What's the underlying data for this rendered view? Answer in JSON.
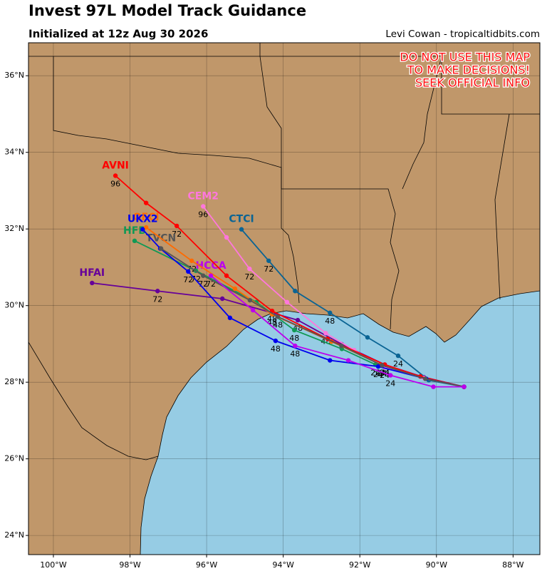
{
  "chart_data": {
    "type": "track",
    "title": "Invest 97L Model Track Guidance",
    "subtitle": "Initialized at 12z Aug 30 2026",
    "credit": "Levi Cowan - tropicaltidbits.com",
    "warning": [
      "DO NOT USE THIS MAP",
      "TO MAKE DECISIONS!",
      "SEEK OFFICIAL INFO"
    ],
    "xlim": [
      -100.65,
      -87.3
    ],
    "ylim": [
      23.5,
      36.86
    ],
    "xticks": [
      {
        "value": -100,
        "label": "100°W"
      },
      {
        "value": -98,
        "label": "98°W"
      },
      {
        "value": -96,
        "label": "96°W"
      },
      {
        "value": -94,
        "label": "94°W"
      },
      {
        "value": -92,
        "label": "92°W"
      },
      {
        "value": -90,
        "label": "90°W"
      },
      {
        "value": -88,
        "label": "88°W"
      }
    ],
    "yticks": [
      {
        "value": 24,
        "label": "24°N"
      },
      {
        "value": 26,
        "label": "26°N"
      },
      {
        "value": 28,
        "label": "28°N"
      },
      {
        "value": 30,
        "label": "30°N"
      },
      {
        "value": 32,
        "label": "32°N"
      },
      {
        "value": 34,
        "label": "34°N"
      },
      {
        "value": 36,
        "label": "36°N"
      }
    ],
    "grid": true,
    "land_color": "#c0976a",
    "water_color": "#96cce4",
    "series": [
      {
        "name": "HFAI",
        "color": "#660099",
        "lon": [
          -89.28,
          -90.33,
          -91.35,
          -92.47,
          -93.62,
          -95.59,
          -97.28,
          -98.99
        ],
        "lat": [
          27.88,
          28.13,
          28.46,
          28.99,
          29.62,
          30.18,
          30.38,
          30.59
        ],
        "hours": [
          null,
          null,
          24,
          null,
          48,
          null,
          72,
          null
        ]
      },
      {
        "name": "HFB",
        "color": "#119955",
        "lon": [
          -89.28,
          -90.33,
          -91.59,
          -92.47,
          -93.71,
          -94.7,
          -96.28,
          -97.88
        ],
        "lat": [
          27.88,
          28.11,
          28.46,
          28.87,
          29.36,
          30.09,
          30.91,
          31.69
        ],
        "hours": [
          null,
          null,
          24,
          null,
          48,
          null,
          72,
          null
        ]
      },
      {
        "name": "CTCI",
        "color": "#0a6494",
        "lon": [
          -89.28,
          -90.2,
          -91.0,
          -91.8,
          -92.78,
          -93.69,
          -94.38,
          -95.09
        ],
        "lat": [
          27.88,
          28.05,
          28.69,
          29.17,
          29.81,
          30.38,
          31.17,
          31.99
        ],
        "hours": [
          null,
          null,
          24,
          null,
          48,
          null,
          72,
          null
        ]
      },
      {
        "name": "CEM2",
        "color": "#ff77dd",
        "lon": [
          -89.28,
          -90.33,
          -91.35,
          -92.15,
          -92.89,
          -93.9,
          -94.88,
          -95.48,
          -96.09
        ],
        "lat": [
          27.88,
          28.11,
          28.39,
          28.84,
          29.28,
          30.09,
          30.96,
          31.78,
          32.59
        ],
        "hours": [
          null,
          null,
          24,
          null,
          48,
          null,
          72,
          null,
          96
        ]
      },
      {
        "name": "OFCI",
        "color": "#ff6a00",
        "lon": [
          -89.28,
          -90.29,
          -91.46,
          -92.74,
          -94.29,
          -95.26,
          -96.39,
          -97.58
        ],
        "lat": [
          27.88,
          28.09,
          28.46,
          29.06,
          29.77,
          30.44,
          31.17,
          32.04
        ],
        "hours": [
          null,
          null,
          24,
          null,
          48,
          null,
          72,
          null
        ]
      },
      {
        "name": "AVNI",
        "color": "#ff0000",
        "lon": [
          -89.28,
          -90.42,
          -91.35,
          -92.84,
          -94.29,
          -95.48,
          -96.78,
          -97.58,
          -98.38
        ],
        "lat": [
          27.88,
          28.15,
          28.46,
          29.13,
          29.86,
          30.78,
          32.08,
          32.68,
          33.39
        ],
        "hours": [
          null,
          null,
          24,
          null,
          48,
          null,
          72,
          null,
          96
        ]
      },
      {
        "name": "UKX2",
        "color": "#0000ee",
        "lon": [
          -89.28,
          -90.27,
          -91.52,
          -92.78,
          -94.2,
          -95.39,
          -96.48,
          -97.21,
          -97.67
        ],
        "lat": [
          27.88,
          28.09,
          28.41,
          28.57,
          29.08,
          29.68,
          30.89,
          31.49,
          31.99
        ],
        "hours": [
          null,
          null,
          24,
          null,
          48,
          null,
          72,
          null,
          null
        ]
      },
      {
        "name": "TVCN",
        "color": "#555555",
        "lon": [
          -89.28,
          -90.29,
          -91.42,
          -92.48,
          -94.14,
          -94.87,
          -96.09,
          -97.19
        ],
        "lat": [
          27.88,
          28.09,
          28.44,
          28.95,
          29.71,
          30.14,
          30.78,
          31.49
        ],
        "hours": [
          null,
          null,
          24,
          null,
          48,
          null,
          72,
          null
        ]
      },
      {
        "name": "HCCA",
        "color": "#bb00ee",
        "lon": [
          -89.28,
          -90.08,
          -91.2,
          -92.3,
          -93.69,
          -94.79,
          -95.89
        ],
        "lat": [
          27.88,
          27.88,
          28.18,
          28.57,
          28.95,
          29.88,
          30.78
        ],
        "hours": [
          null,
          null,
          24,
          null,
          48,
          null,
          72
        ]
      }
    ]
  }
}
